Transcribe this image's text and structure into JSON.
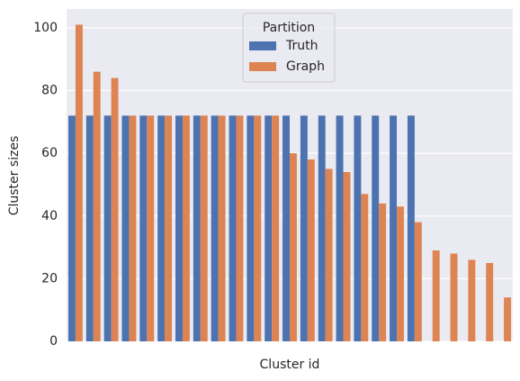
{
  "chart_data": {
    "type": "bar",
    "xlabel": "Cluster id",
    "ylabel": "Cluster sizes",
    "categories": [
      null,
      null,
      null,
      null,
      null,
      null,
      null,
      null,
      null,
      null,
      null,
      null,
      null,
      null,
      null,
      null,
      null,
      null,
      null,
      null,
      null,
      null,
      null,
      null,
      null
    ],
    "series": [
      {
        "name": "Truth",
        "color": "#4c72b0",
        "values": [
          72,
          72,
          72,
          72,
          72,
          72,
          72,
          72,
          72,
          72,
          72,
          72,
          72,
          72,
          72,
          72,
          72,
          72,
          72,
          72,
          null,
          null,
          null,
          null,
          null
        ]
      },
      {
        "name": "Graph",
        "color": "#dd8452",
        "values": [
          101,
          86,
          84,
          72,
          72,
          72,
          72,
          72,
          72,
          72,
          72,
          72,
          60,
          58,
          55,
          54,
          47,
          44,
          43,
          38,
          29,
          28,
          26,
          25,
          14
        ]
      }
    ],
    "legend_title": "Partition",
    "legend": "upper center",
    "ylim": [
      0,
      106
    ],
    "yticks": [
      0,
      20,
      40,
      60,
      80,
      100
    ],
    "grid": true
  }
}
